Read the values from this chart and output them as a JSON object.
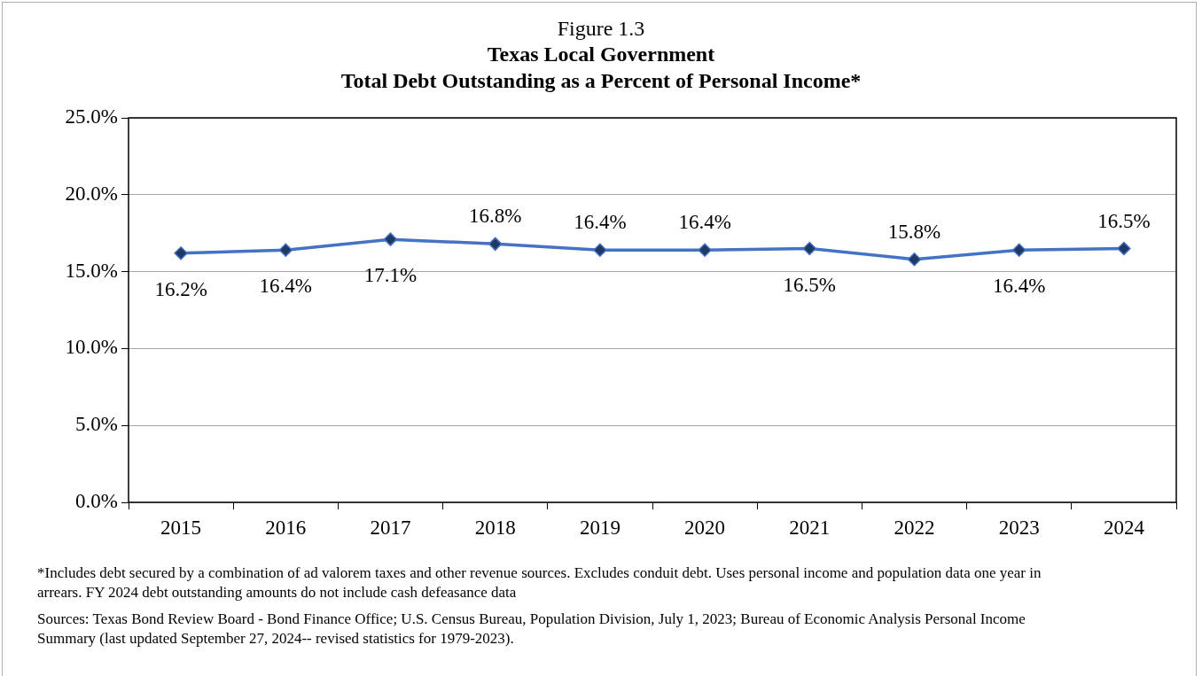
{
  "chart_data": {
    "type": "line",
    "subtitle": "Figure 1.3",
    "title": "Texas Local Government\nTotal Debt Outstanding as a Percent of Personal Income*",
    "categories": [
      "2015",
      "2016",
      "2017",
      "2018",
      "2019",
      "2020",
      "2021",
      "2022",
      "2023",
      "2024"
    ],
    "series": [
      {
        "color": "#4472c4",
        "values": [
          16.2,
          16.4,
          17.1,
          16.8,
          16.4,
          16.4,
          16.5,
          15.8,
          16.4,
          16.5
        ],
        "value_labels": [
          "16.2%",
          "16.4%",
          "17.1%",
          "16.8%",
          "16.4%",
          "16.4%",
          "16.5%",
          "15.8%",
          "16.4%",
          "16.5%"
        ]
      }
    ],
    "ylim": [
      0,
      25
    ],
    "yticks": [
      {
        "value": 0,
        "label": "0.0%"
      },
      {
        "value": 5,
        "label": "5.0%"
      },
      {
        "value": 10,
        "label": "10.0%"
      },
      {
        "value": 15,
        "label": "15.0%"
      },
      {
        "value": 20,
        "label": "20.0%"
      },
      {
        "value": 25,
        "label": "25.0%"
      }
    ],
    "grid": "y",
    "legend": false,
    "marker": "diamond",
    "line_style": "solid",
    "annotations": [
      "*Includes debt secured by a combination of ad valorem taxes and other revenue sources. Excludes conduit debt. Uses personal income and population data one year in arrears. FY 2024 debt outstanding amounts do not include cash defeasance data",
      "Sources: Texas Bond Review Board - Bond Finance Office; U.S. Census Bureau, Population Division, July 1, 2023; Bureau of Economic Analysis Personal Income Summary (last updated September 27, 2024-- revised statistics for 1979-2023)."
    ]
  }
}
